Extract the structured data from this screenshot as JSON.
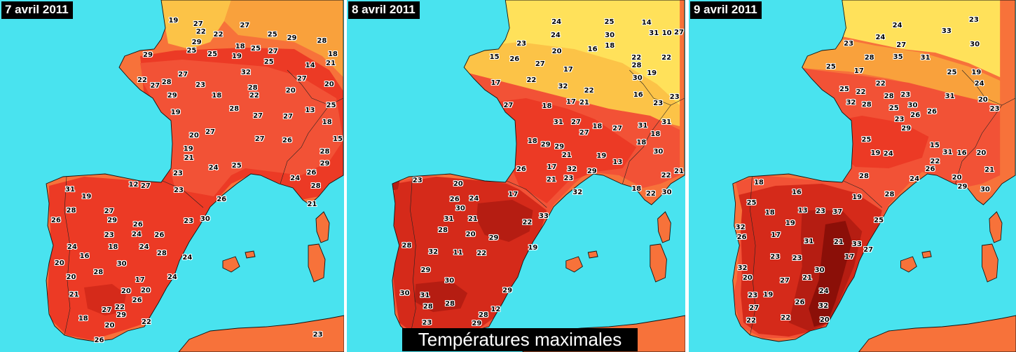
{
  "caption": "Températures maximales",
  "colors": {
    "sea": "#49e3ef",
    "band_lt20": "#ffe15a",
    "band_20_22": "#fcc347",
    "band_22_24": "#f9a13c",
    "band_24_26": "#f7723a",
    "band_26_28": "#f25236",
    "band_28_30": "#ec3a25",
    "band_30_32": "#d52a1a",
    "band_32_34": "#b51d12",
    "band_gt34": "#8b0f08"
  },
  "panels": [
    {
      "date": "7 avril 2011",
      "readings": [
        "14",
        "12",
        "18",
        "22",
        "19",
        "21",
        "20",
        "15",
        "13",
        "17",
        "18",
        "16",
        "18",
        "18",
        "19",
        "20",
        "21",
        "20",
        "18",
        "20",
        "24",
        "27",
        "25",
        "22",
        "24",
        "27",
        "24",
        "22",
        "26",
        "26",
        "28",
        "27",
        "25",
        "26",
        "26",
        "26",
        "24",
        "25",
        "27",
        "27",
        "29",
        "29",
        "25",
        "28",
        "29",
        "27",
        "19",
        "21",
        "23",
        "22",
        "27",
        "20",
        "19",
        "29",
        "27",
        "23",
        "29",
        "26",
        "25",
        "27",
        "25",
        "20",
        "28",
        "18",
        "28",
        "27",
        "28",
        "28",
        "24",
        "27",
        "30",
        "27",
        "28",
        "23",
        "25",
        "21",
        "31",
        "29",
        "28",
        "24",
        "27",
        "32",
        "23",
        "26",
        "28",
        "24",
        "30",
        "20",
        "29",
        "20",
        "23",
        "22",
        "22",
        "19",
        "26",
        "23"
      ]
    },
    {
      "date": "8 avril 2011",
      "readings": [
        "18",
        "15",
        "17",
        "19",
        "16",
        "14",
        "17",
        "18",
        "17",
        "18",
        "20",
        "19",
        "16",
        "18",
        "13",
        "12",
        "11",
        "17",
        "21",
        "20",
        "19",
        "22",
        "17",
        "18",
        "21",
        "21",
        "23",
        "22",
        "22",
        "23",
        "23",
        "21",
        "22",
        "24",
        "24",
        "27",
        "30",
        "25",
        "23",
        "31",
        "29",
        "27",
        "22",
        "26",
        "28",
        "29",
        "28",
        "18",
        "10",
        "32",
        "29",
        "31",
        "28",
        "26",
        "30",
        "27",
        "18",
        "24",
        "31",
        "27",
        "32",
        "30",
        "28",
        "30",
        "31",
        "30",
        "32",
        "21",
        "28",
        "30",
        "32",
        "23",
        "29",
        "29",
        "28",
        "28",
        "29",
        "27",
        "22",
        "22",
        "20",
        "30",
        "33",
        "31",
        "31",
        "22",
        "26",
        "29",
        "23",
        "26",
        "27"
      ]
    },
    {
      "date": "9 avril 2011",
      "readings": [
        "17",
        "16",
        "17",
        "15",
        "19",
        "13",
        "16",
        "22",
        "21",
        "17",
        "19",
        "22",
        "24",
        "23",
        "22",
        "23",
        "24",
        "21",
        "24",
        "23",
        "25",
        "24",
        "27",
        "32",
        "27",
        "23",
        "25",
        "23",
        "26",
        "32",
        "30",
        "28",
        "28",
        "30",
        "28",
        "31",
        "30",
        "18",
        "19",
        "19",
        "23",
        "23",
        "25",
        "31",
        "27",
        "26",
        "24",
        "18",
        "20",
        "27",
        "28",
        "33",
        "20",
        "20",
        "25",
        "32",
        "31",
        "28",
        "31",
        "29",
        "21",
        "25",
        "35",
        "19",
        "22",
        "25",
        "30",
        "33",
        "20",
        "26",
        "20",
        "23",
        "29",
        "37",
        "32",
        "25",
        "26",
        "24",
        "26",
        "23",
        "22"
      ]
    }
  ]
}
